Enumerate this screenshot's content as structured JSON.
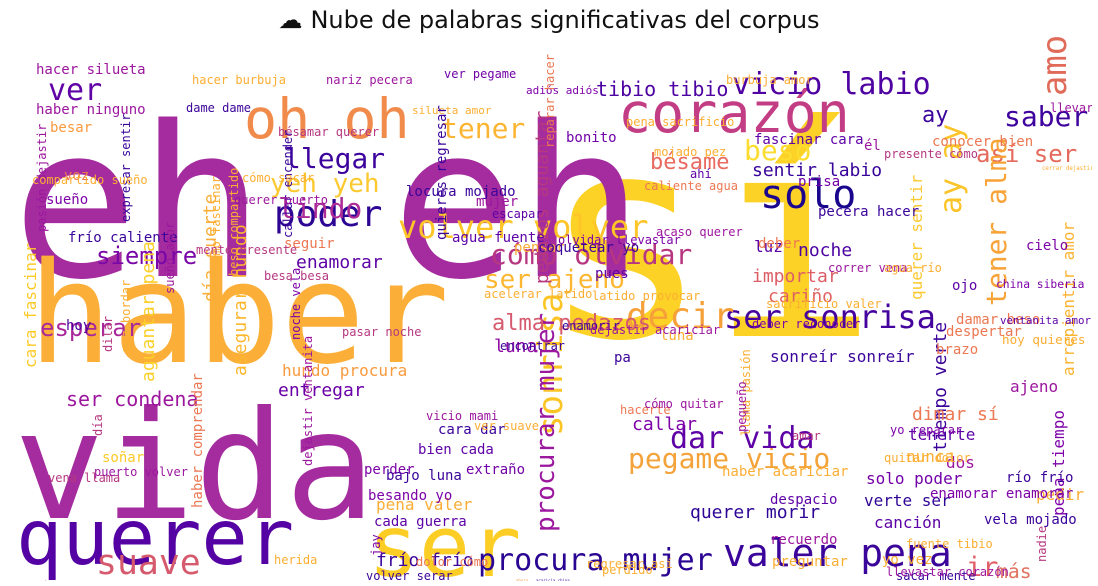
{
  "title": {
    "icon": "cloud-icon",
    "glyph": "☁",
    "text": "Nube de palabras significativas del corpus"
  },
  "palette": [
    "#0d0887",
    "#46039f",
    "#7201a8",
    "#9c179e",
    "#bd3786",
    "#d8576b",
    "#ed7953",
    "#fb9f3a",
    "#fdca26",
    "#f0f921"
  ],
  "words": [
    {
      "t": "ser",
      "c": "#fcce25"
    },
    {
      "t": "sí",
      "c": "#fdd226"
    },
    {
      "t": "eh eh",
      "c": "#a42c9f"
    },
    {
      "t": "haber",
      "c": "#fbaf38"
    },
    {
      "t": "vida",
      "c": "#a42c9f"
    },
    {
      "t": "amor",
      "c": "#e06b59"
    },
    {
      "t": "querer",
      "c": "#5402a3"
    },
    {
      "t": "suave",
      "c": "#d65a6d"
    },
    {
      "t": "ir",
      "c": "#e0606a"
    },
    {
      "t": "oh oh",
      "c": "#f08b4b"
    },
    {
      "t": "corazón",
      "c": "#c33d84"
    },
    {
      "t": "valer pena",
      "c": "#3b049a"
    },
    {
      "t": "procura mujer",
      "c": "#2a0593"
    },
    {
      "t": "ser sonrisa",
      "c": "#45039e"
    },
    {
      "t": "volver volver",
      "c": "#fdc528"
    },
    {
      "t": "solo",
      "c": "#1a068d"
    },
    {
      "t": "poder",
      "c": "#2c0594"
    },
    {
      "t": "decir",
      "c": "#f6a03a"
    },
    {
      "t": "cómo olvidar",
      "c": "#b73680"
    },
    {
      "t": "ser ajeno",
      "c": "#fcb733"
    },
    {
      "t": "pegame vicio",
      "c": "#f3a33a"
    },
    {
      "t": "dar vida",
      "c": "#5e02a6"
    },
    {
      "t": "sonrisa",
      "c": "#fcc526"
    },
    {
      "t": "procurar mujer",
      "c": "#9b179e"
    },
    {
      "t": "vicio labio",
      "c": "#4f02a2"
    },
    {
      "t": "tener",
      "c": "#fcb532"
    },
    {
      "t": "beso",
      "c": "#fbdc2f"
    },
    {
      "t": "ay ay",
      "c": "#fbc42a"
    },
    {
      "t": "saber",
      "c": "#3f049d"
    },
    {
      "t": "así ser",
      "c": "#e36a5c"
    },
    {
      "t": "tener alma",
      "c": "#f8a338"
    },
    {
      "t": "amor",
      "c": "#f4e225"
    },
    {
      "t": "ver",
      "c": "#5f02a6"
    },
    {
      "t": "llegar",
      "c": "#3d049d"
    },
    {
      "t": "yeh yeh",
      "c": "#fbc930"
    },
    {
      "t": "lindo",
      "c": "#ad2b97"
    },
    {
      "t": "siempre",
      "c": "#7a07a8"
    },
    {
      "t": "ay",
      "c": "#3a049b"
    },
    {
      "t": "bésame",
      "c": "#e86a60"
    },
    {
      "t": "sentir labio",
      "c": "#37049a"
    },
    {
      "t": "más",
      "c": "#e17160"
    },
    {
      "t": "esperar",
      "c": "#a8289b"
    },
    {
      "t": "tibio tibio",
      "c": "#4c03a1"
    },
    {
      "t": "aguantar pena",
      "c": "#fcd02a"
    },
    {
      "t": "alma pedazos",
      "c": "#d65a6d"
    },
    {
      "t": "fascinar cara",
      "c": "#5d02a6"
    },
    {
      "t": "enamorar",
      "c": "#5d02a6"
    },
    {
      "t": "noche",
      "c": "#4c03a1"
    },
    {
      "t": "luz",
      "c": "#5a02a5"
    },
    {
      "t": "importar",
      "c": "#dc5e67"
    },
    {
      "t": "cariño",
      "c": "#e06461"
    },
    {
      "t": "querer sentir",
      "c": "#fbc930"
    },
    {
      "t": "arrepientir amor",
      "c": "#fcb32f"
    },
    {
      "t": "tiempo verte",
      "c": "#3b049a"
    },
    {
      "t": "pedazos aguantar",
      "c": "#b63880"
    },
    {
      "t": "luna",
      "c": "#8e0ca4"
    },
    {
      "t": "dimar sí",
      "c": "#ed7953"
    },
    {
      "t": "callar",
      "c": "#7e03a8"
    },
    {
      "t": "entregar",
      "c": "#6a00a8"
    },
    {
      "t": "ser condena",
      "c": "#9c179e"
    },
    {
      "t": "asegurar hundo",
      "c": "#fcb72d"
    },
    {
      "t": "hundo procura",
      "c": "#f99a3e"
    },
    {
      "t": "cara fascinar",
      "c": "#fdca26"
    },
    {
      "t": "día suerte",
      "c": "#fbad36"
    },
    {
      "t": "haber comprendar",
      "c": "#ec7853"
    },
    {
      "t": "pena tiempo",
      "c": "#7e03a8"
    },
    {
      "t": "dos",
      "c": "#9c179e"
    },
    {
      "t": "nunca",
      "c": "#fcae32"
    },
    {
      "t": "canción",
      "c": "#5d02a6"
    },
    {
      "t": "verte ser",
      "c": "#2e0595"
    },
    {
      "t": "solo poder",
      "c": "#7201a8"
    },
    {
      "t": "pena valer",
      "c": "#fbad36"
    },
    {
      "t": "querer morir",
      "c": "#2e0595"
    },
    {
      "t": "frío frío",
      "c": "#3b049a"
    },
    {
      "t": "así",
      "c": "#b63880"
    },
    {
      "t": "soñar",
      "c": "#fdca26"
    },
    {
      "t": "ajeno",
      "c": "#9c179e"
    },
    {
      "t": "tenerte",
      "c": "#5d02a6"
    },
    {
      "t": "hoy",
      "c": "#4c03a1"
    },
    {
      "t": "pedir",
      "c": "#fcae32"
    },
    {
      "t": "cielo",
      "c": "#7e03a8"
    },
    {
      "t": "ojo",
      "c": "#5d02a6"
    },
    {
      "t": "sueño",
      "c": "#7e03a8"
    },
    {
      "t": "voz",
      "c": "#ec7853"
    },
    {
      "t": "besar",
      "c": "#f99a3e"
    },
    {
      "t": "bonito",
      "c": "#7201a8"
    },
    {
      "t": "pues",
      "c": "#5d02a6"
    },
    {
      "t": "él",
      "c": "#9c179e"
    },
    {
      "t": "prisa",
      "c": "#7201a8"
    },
    {
      "t": "mujer",
      "c": "#9c179e"
    },
    {
      "t": "llevar",
      "c": "#9c179e"
    },
    {
      "t": "deber",
      "c": "#ec7853"
    },
    {
      "t": "pensar",
      "c": "#fbad36"
    },
    {
      "t": "seguir",
      "c": "#ec7853"
    },
    {
      "t": "despacio",
      "c": "#5d02a6"
    },
    {
      "t": "perder",
      "c": "#7e03a8"
    },
    {
      "t": "ahora",
      "c": "#f99a3e"
    },
    {
      "t": "mar",
      "c": "#b63880"
    },
    {
      "t": "luna",
      "c": "#fcae32"
    },
    {
      "t": "pa",
      "c": "#3b049a"
    },
    {
      "t": "brazo",
      "c": "#ec7853"
    },
    {
      "t": "nadie",
      "c": "#b63880"
    },
    {
      "t": "yo vez",
      "c": "#fcae32"
    },
    {
      "t": "dame dame",
      "c": "#3b049a"
    },
    {
      "t": "hacer silueta",
      "c": "#9c179e"
    },
    {
      "t": "hacer burbuja",
      "c": "#fcae32"
    },
    {
      "t": "nariz pecera",
      "c": "#9c179e"
    },
    {
      "t": "ver pegame",
      "c": "#7201a8"
    },
    {
      "t": "adiós adiós",
      "c": "#7e03a8"
    },
    {
      "t": "burbuja amor",
      "c": "#fbad36"
    },
    {
      "t": "haber ninguno",
      "c": "#9c179e"
    },
    {
      "t": "bésamar querer",
      "c": "#b63880"
    },
    {
      "t": "silueta amor",
      "c": "#fcae32"
    },
    {
      "t": "escapar",
      "c": "#5d02a6"
    },
    {
      "t": "coquetear yo",
      "c": "#3b049a"
    },
    {
      "t": "agua fuente",
      "c": "#5d02a6"
    },
    {
      "t": "frío caliente",
      "c": "#3b049a"
    },
    {
      "t": "locura mojado",
      "c": "#3b049a"
    },
    {
      "t": "pecera hacer",
      "c": "#3b049a"
    },
    {
      "t": "callar encender",
      "c": "#3b049a"
    },
    {
      "t": "quieres regresar",
      "c": "#3b049a"
    },
    {
      "t": "expresar sentir",
      "c": "#3b049a"
    },
    {
      "t": "pasión dejastir",
      "c": "#9c179e"
    },
    {
      "t": "conocer bien",
      "c": "#ec7853"
    },
    {
      "t": "china siberia",
      "c": "#7e03a8"
    },
    {
      "t": "damar beso",
      "c": "#ec7853"
    },
    {
      "t": "hoy quieres",
      "c": "#fcae32"
    },
    {
      "t": "despertar",
      "c": "#ec7853"
    },
    {
      "t": "sonreír sonreír",
      "c": "#3b049a"
    },
    {
      "t": "pasar noche",
      "c": "#b63880"
    },
    {
      "t": "encontrar",
      "c": "#3b049a"
    },
    {
      "t": "enamorir",
      "c": "#3b049a"
    },
    {
      "t": "cara dar",
      "c": "#3b049a"
    },
    {
      "t": "bien cada",
      "c": "#5d02a6"
    },
    {
      "t": "extraño",
      "c": "#7201a8"
    },
    {
      "t": "cada guerra",
      "c": "#5d02a6"
    },
    {
      "t": "besando yo",
      "c": "#7e03a8"
    },
    {
      "t": "bajo luna",
      "c": "#3b049a"
    },
    {
      "t": "recuerdo",
      "c": "#9c179e"
    },
    {
      "t": "preguntar",
      "c": "#fcae32"
    },
    {
      "t": "acaricia china",
      "c": "#3b049a"
    },
    {
      "t": "regresar así",
      "c": "#fcae32"
    },
    {
      "t": "cintura hacer",
      "c": "#3b049a"
    },
    {
      "t": "tocar nariz",
      "c": "#fcae32"
    },
    {
      "t": "suavemente bésamar",
      "c": "#3b049a"
    },
    {
      "t": "labio besando",
      "c": "#3b049a"
    },
    {
      "t": "lástima dar",
      "c": "#fcae32"
    },
    {
      "t": "olvidar vivir",
      "c": "#9c179e"
    },
    {
      "t": "vena llama",
      "c": "#b63880"
    },
    {
      "t": "dilar",
      "c": "#b63880"
    },
    {
      "t": "pez bordar",
      "c": "#fcae32"
    },
    {
      "t": "noche vela",
      "c": "#7e03a8"
    },
    {
      "t": "haber acariciar",
      "c": "#fcae32"
    },
    {
      "t": "vela mojado",
      "c": "#3b049a"
    },
    {
      "t": "río frío",
      "c": "#3b049a"
    },
    {
      "t": "enamorar enamorar",
      "c": "#7e03a8"
    },
    {
      "t": "fuente tibio",
      "c": "#fcae32"
    },
    {
      "t": "sacar mente",
      "c": "#3b049a"
    },
    {
      "t": "vicio mami",
      "c": "#9c179e"
    },
    {
      "t": "ver suave",
      "c": "#fcae32"
    },
    {
      "t": "hacerte",
      "c": "#ec7853"
    },
    {
      "t": "llama pasión",
      "c": "#fcae32"
    },
    {
      "t": "pequeño",
      "c": "#9c179e"
    },
    {
      "t": "amar",
      "c": "#b63880"
    },
    {
      "t": "acaso querer",
      "c": "#9c179e"
    },
    {
      "t": "ahí",
      "c": "#5d02a6"
    },
    {
      "t": "caliente agua",
      "c": "#ec7853"
    },
    {
      "t": "pena sacrificio",
      "c": "#fcae32"
    },
    {
      "t": "mojado pez",
      "c": "#fcae32"
    },
    {
      "t": "correr vena",
      "c": "#9c179e"
    },
    {
      "t": "agua río",
      "c": "#fcae32"
    },
    {
      "t": "sacrificio valer",
      "c": "#fcae32"
    },
    {
      "t": "ventanita amor",
      "c": "#5d02a6"
    },
    {
      "t": "deber reconocer",
      "c": "#7e03a8"
    },
    {
      "t": "cómo quitar",
      "c": "#9c179e"
    },
    {
      "t": "herida",
      "c": "#fcae32"
    },
    {
      "t": "perdido",
      "c": "#fcae32"
    },
    {
      "t": "dolor cómo",
      "c": "#ec7853"
    },
    {
      "t": "volver serar",
      "c": "#3b049a"
    },
    {
      "t": "llevastar corazón",
      "c": "#9c179e"
    },
    {
      "t": "jay",
      "c": "#7e03a8"
    },
    {
      "t": "día",
      "c": "#b63880"
    },
    {
      "t": "dejastir ventanita",
      "c": "#9c179e"
    },
    {
      "t": "puerto volver",
      "c": "#9c179e"
    },
    {
      "t": "cómo fascinar",
      "c": "#fcae32"
    },
    {
      "t": "beso compartido",
      "c": "#fcae32"
    },
    {
      "t": "besa besa",
      "c": "#b63880"
    },
    {
      "t": "acelerar latido",
      "c": "#fcae32"
    },
    {
      "t": "sueño amor",
      "c": "#9c179e"
    },
    {
      "t": "dejastir acariciar",
      "c": "#9c179e"
    },
    {
      "t": "cómo sacar",
      "c": "#fcae32"
    },
    {
      "t": "querer puerto",
      "c": "#9c179e"
    },
    {
      "t": "compartido sueño",
      "c": "#fcae32"
    },
    {
      "t": "mente presente",
      "c": "#b63880"
    },
    {
      "t": "presente cómo",
      "c": "#b63880"
    },
    {
      "t": "cerrar dejastir",
      "c": "#fcae32"
    },
    {
      "t": "latido provocar",
      "c": "#fcae32"
    },
    {
      "t": "reparar hacer",
      "c": "#ec7853"
    },
    {
      "t": "yo reparar",
      "c": "#7e03a8"
    },
    {
      "t": "quitar dolor",
      "c": "#fcae32"
    },
    {
      "t": "olvidar llevastar",
      "c": "#7e03a8"
    },
    {
      "t": "yo cerrar",
      "c": "#fcae32"
    }
  ]
}
